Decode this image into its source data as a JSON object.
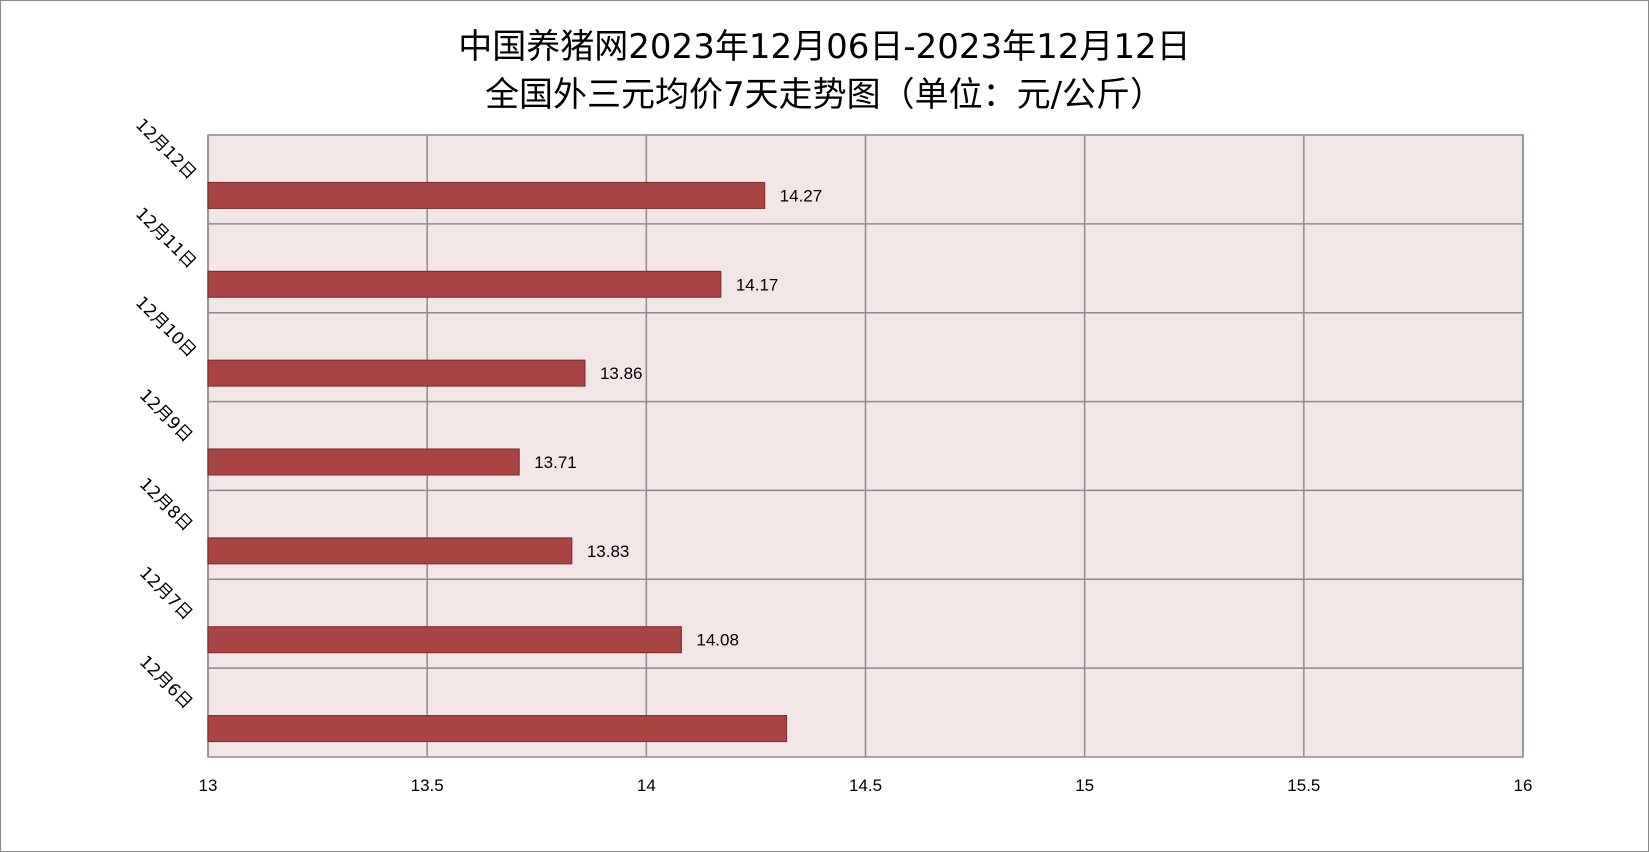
{
  "chart_data": {
    "type": "bar",
    "orientation": "horizontal",
    "title": "中国养猪网2023年12月06日-2023年12月12日",
    "subtitle": "全国外三元均价7天走势图（单位：元/公斤）",
    "categories": [
      "12月12日",
      "12月11日",
      "12月10日",
      "12月9日",
      "12月8日",
      "12月7日",
      "12月6日"
    ],
    "values": [
      14.27,
      14.17,
      13.86,
      13.71,
      13.83,
      14.08,
      14.32
    ],
    "data_labels": [
      "14.27",
      "14.17",
      "13.86",
      "13.71",
      "13.83",
      "14.08",
      ""
    ],
    "xlabel": "",
    "ylabel": "",
    "xlim": [
      13,
      16
    ],
    "x_ticks": [
      "13",
      "13.5",
      "14",
      "14.5",
      "15",
      "15.5",
      "16"
    ],
    "grid": true,
    "legend": "none",
    "colors": {
      "bar_fill": "#a84443",
      "bar_stroke": "#7a2b2a",
      "plot_background": "#f2e6e6",
      "grid": "#8c8c8c"
    }
  }
}
